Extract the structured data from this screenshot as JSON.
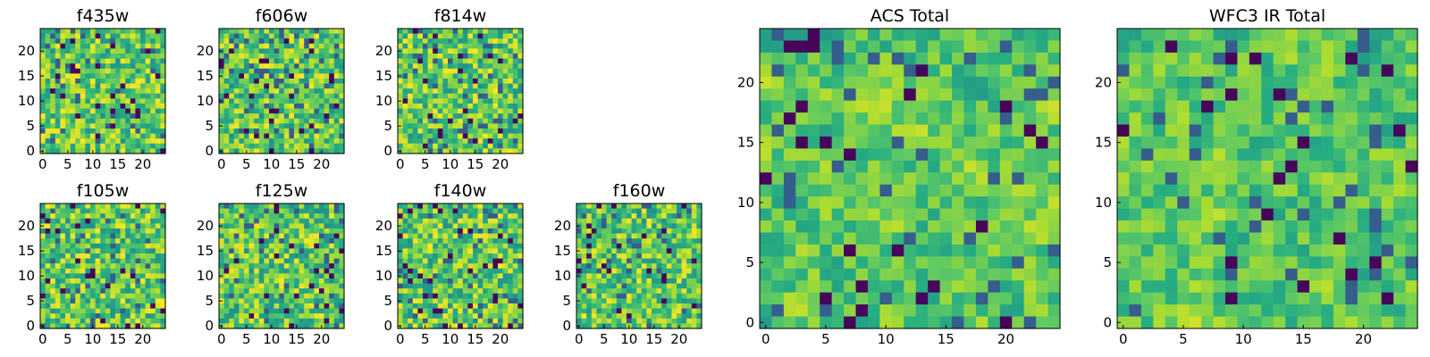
{
  "chart_data": [
    {
      "type": "heatmap",
      "title": "f435w",
      "xticks": [
        "0",
        "5",
        "10",
        "15",
        "20"
      ],
      "yticks": [
        "0",
        "5",
        "10",
        "15",
        "20"
      ],
      "xlim": [
        -0.5,
        24.5
      ],
      "ylim": [
        -0.5,
        24.5
      ],
      "grid_size": 25,
      "colormap": "viridis",
      "seed": 11
    },
    {
      "type": "heatmap",
      "title": "f606w",
      "xticks": [
        "0",
        "5",
        "10",
        "15",
        "20"
      ],
      "yticks": [
        "0",
        "5",
        "10",
        "15",
        "20"
      ],
      "xlim": [
        -0.5,
        24.5
      ],
      "ylim": [
        -0.5,
        24.5
      ],
      "grid_size": 25,
      "colormap": "viridis",
      "seed": 23
    },
    {
      "type": "heatmap",
      "title": "f814w",
      "xticks": [
        "0",
        "5",
        "10",
        "15",
        "20"
      ],
      "yticks": [
        "0",
        "5",
        "10",
        "15",
        "20"
      ],
      "xlim": [
        -0.5,
        24.5
      ],
      "ylim": [
        -0.5,
        24.5
      ],
      "grid_size": 25,
      "colormap": "viridis",
      "seed": 37
    },
    {
      "type": "heatmap",
      "title": "f105w",
      "xticks": [
        "0",
        "5",
        "10",
        "15",
        "20"
      ],
      "yticks": [
        "0",
        "5",
        "10",
        "15",
        "20"
      ],
      "xlim": [
        -0.5,
        24.5
      ],
      "ylim": [
        -0.5,
        24.5
      ],
      "grid_size": 25,
      "colormap": "viridis",
      "seed": 41
    },
    {
      "type": "heatmap",
      "title": "f125w",
      "xticks": [
        "0",
        "5",
        "10",
        "15",
        "20"
      ],
      "yticks": [
        "0",
        "5",
        "10",
        "15",
        "20"
      ],
      "xlim": [
        -0.5,
        24.5
      ],
      "ylim": [
        -0.5,
        24.5
      ],
      "grid_size": 25,
      "colormap": "viridis",
      "seed": 53
    },
    {
      "type": "heatmap",
      "title": "f140w",
      "xticks": [
        "0",
        "5",
        "10",
        "15",
        "20"
      ],
      "yticks": [
        "0",
        "5",
        "10",
        "15",
        "20"
      ],
      "xlim": [
        -0.5,
        24.5
      ],
      "ylim": [
        -0.5,
        24.5
      ],
      "grid_size": 25,
      "colormap": "viridis",
      "seed": 67
    },
    {
      "type": "heatmap",
      "title": "f160w",
      "xticks": [
        "0",
        "5",
        "10",
        "15",
        "20"
      ],
      "yticks": [
        "0",
        "5",
        "10",
        "15",
        "20"
      ],
      "xlim": [
        -0.5,
        24.5
      ],
      "ylim": [
        -0.5,
        24.5
      ],
      "grid_size": 25,
      "colormap": "viridis",
      "seed": 79
    },
    {
      "type": "heatmap",
      "title": "ACS Total",
      "xticks": [
        "0",
        "5",
        "10",
        "15",
        "20"
      ],
      "yticks": [
        "0",
        "5",
        "10",
        "15",
        "20"
      ],
      "xlim": [
        -0.5,
        24.5
      ],
      "ylim": [
        -0.5,
        24.5
      ],
      "grid_size": 25,
      "colormap": "viridis",
      "seed": 97
    },
    {
      "type": "heatmap",
      "title": "WFC3 IR Total",
      "xticks": [
        "0",
        "5",
        "10",
        "15",
        "20"
      ],
      "yticks": [
        "0",
        "5",
        "10",
        "15",
        "20"
      ],
      "xlim": [
        -0.5,
        24.5
      ],
      "ylim": [
        -0.5,
        24.5
      ],
      "grid_size": 25,
      "colormap": "viridis",
      "seed": 131
    }
  ]
}
